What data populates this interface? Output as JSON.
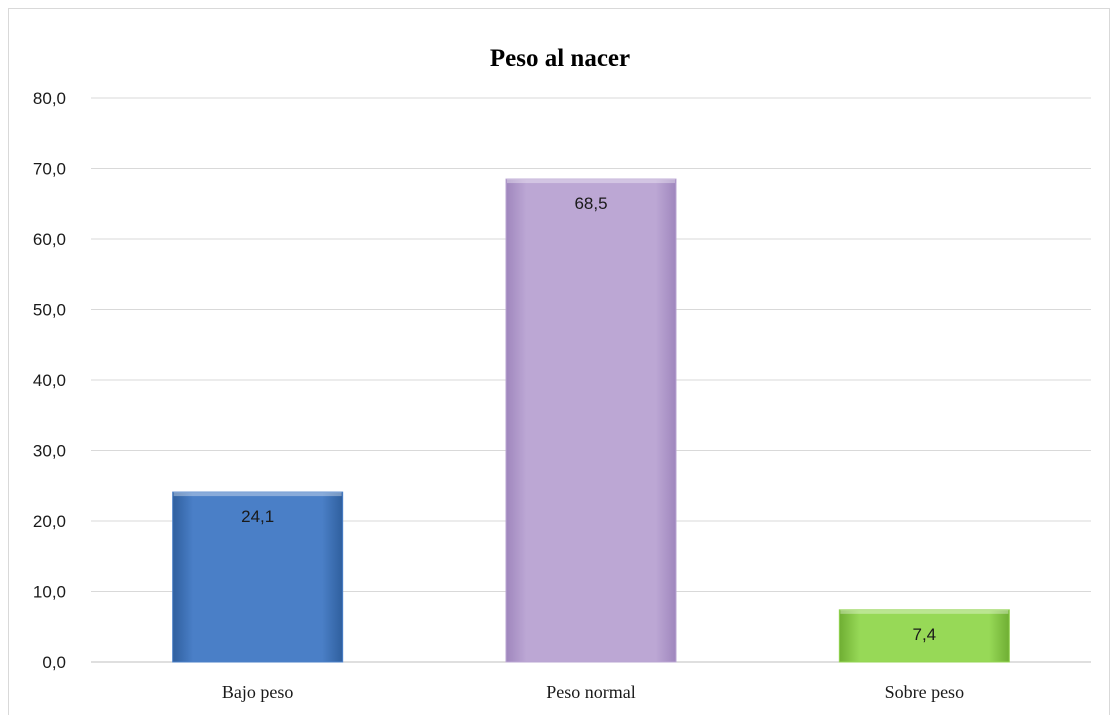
{
  "chart_data": {
    "type": "bar",
    "title": "Peso al nacer",
    "categories": [
      "Bajo peso",
      "Peso normal",
      "Sobre peso"
    ],
    "values": [
      24.1,
      68.5,
      7.4
    ],
    "value_labels": [
      "24,1",
      "68,5",
      "7,4"
    ],
    "ylim": [
      0,
      80
    ],
    "y_ticks": [
      0,
      10,
      20,
      30,
      40,
      50,
      60,
      70,
      80
    ],
    "y_tick_labels": [
      "0,0",
      "10,0",
      "20,0",
      "30,0",
      "40,0",
      "50,0",
      "60,0",
      "70,0",
      "80,0"
    ],
    "bar_colors": [
      "#4a7fc7",
      "#b9a4d2",
      "#93d452"
    ],
    "grid": true,
    "legend": "none"
  }
}
